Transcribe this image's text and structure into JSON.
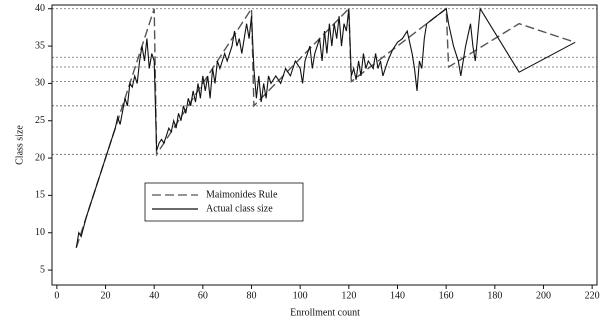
{
  "chart_data": {
    "type": "line",
    "xlabel": "Enrollment count",
    "ylabel": "Class size",
    "xlim": [
      -2,
      222
    ],
    "ylim": [
      3,
      40.5
    ],
    "xticks": [
      0,
      20,
      40,
      60,
      80,
      100,
      120,
      140,
      160,
      180,
      200,
      220
    ],
    "yticks": [
      5,
      10,
      15,
      20,
      25,
      30,
      35,
      40
    ],
    "reference_lines": [
      40,
      33.5,
      32.2,
      30.25,
      27,
      20.5
    ],
    "series": [
      {
        "name": "Maimonides Rule",
        "color": "#555555",
        "dashed": true,
        "x": [
          8,
          40,
          41,
          80,
          81,
          120,
          121,
          160,
          161,
          190,
          213
        ],
        "values": [
          8,
          40,
          20.5,
          40,
          27,
          40,
          30.25,
          40,
          32.2,
          38,
          35.5
        ]
      },
      {
        "name": "Actual class size",
        "color": "#111111",
        "dashed": false,
        "x": [
          8,
          9,
          10,
          12,
          14,
          16,
          18,
          20,
          22,
          24,
          25,
          26,
          28,
          29,
          30,
          31,
          32,
          33,
          34,
          35,
          36,
          37,
          38,
          39,
          40,
          41,
          42,
          43,
          44,
          45,
          46,
          47,
          48,
          49,
          50,
          51,
          52,
          53,
          54,
          55,
          56,
          57,
          58,
          59,
          60,
          61,
          62,
          63,
          64,
          65,
          66,
          67,
          68,
          69,
          70,
          72,
          73,
          74,
          75,
          76,
          77,
          78,
          79,
          80,
          81,
          82,
          83,
          84,
          85,
          86,
          87,
          88,
          90,
          92,
          94,
          96,
          98,
          100,
          101,
          102,
          104,
          105,
          106,
          108,
          109,
          110,
          111,
          112,
          113,
          114,
          115,
          116,
          117,
          118,
          119,
          120,
          121,
          122,
          123,
          124,
          125,
          126,
          127,
          128,
          130,
          131,
          132,
          133,
          134,
          136,
          138,
          140,
          142,
          144,
          146,
          147,
          148,
          149,
          150,
          151,
          152,
          154,
          156,
          158,
          160,
          161,
          163,
          165,
          166,
          168,
          170,
          171,
          172,
          174,
          190,
          213
        ],
        "values": [
          8,
          10,
          9.5,
          12,
          14,
          16,
          18,
          20,
          22,
          24,
          25.5,
          24.5,
          28,
          27,
          30,
          29.5,
          31,
          30,
          33,
          35,
          33,
          36,
          32,
          34,
          33,
          21,
          22,
          22.5,
          22,
          23,
          24,
          23.5,
          25,
          24,
          26,
          25,
          27,
          26,
          28,
          27,
          29,
          27.5,
          30,
          28,
          31,
          29,
          31,
          28,
          32,
          30,
          33,
          32,
          33,
          34,
          33,
          35,
          37,
          35,
          36,
          34,
          36,
          38,
          36,
          39,
          32,
          28,
          31,
          27.5,
          30,
          28,
          31,
          30,
          31,
          30,
          32,
          31,
          33,
          32,
          30,
          33,
          35,
          32,
          34,
          36,
          33,
          37,
          34,
          38,
          35,
          38,
          36,
          39,
          35,
          38,
          37,
          40,
          31,
          32,
          30.5,
          33,
          31,
          34,
          32,
          33,
          32,
          34,
          32,
          33,
          31,
          33,
          34.5,
          35.5,
          36,
          37,
          34,
          32,
          29,
          33,
          32,
          36,
          38,
          38.5,
          39,
          39.5,
          40,
          38,
          35,
          33,
          31,
          35,
          38,
          35,
          33,
          40,
          31.5,
          35.5
        ]
      }
    ]
  }
}
